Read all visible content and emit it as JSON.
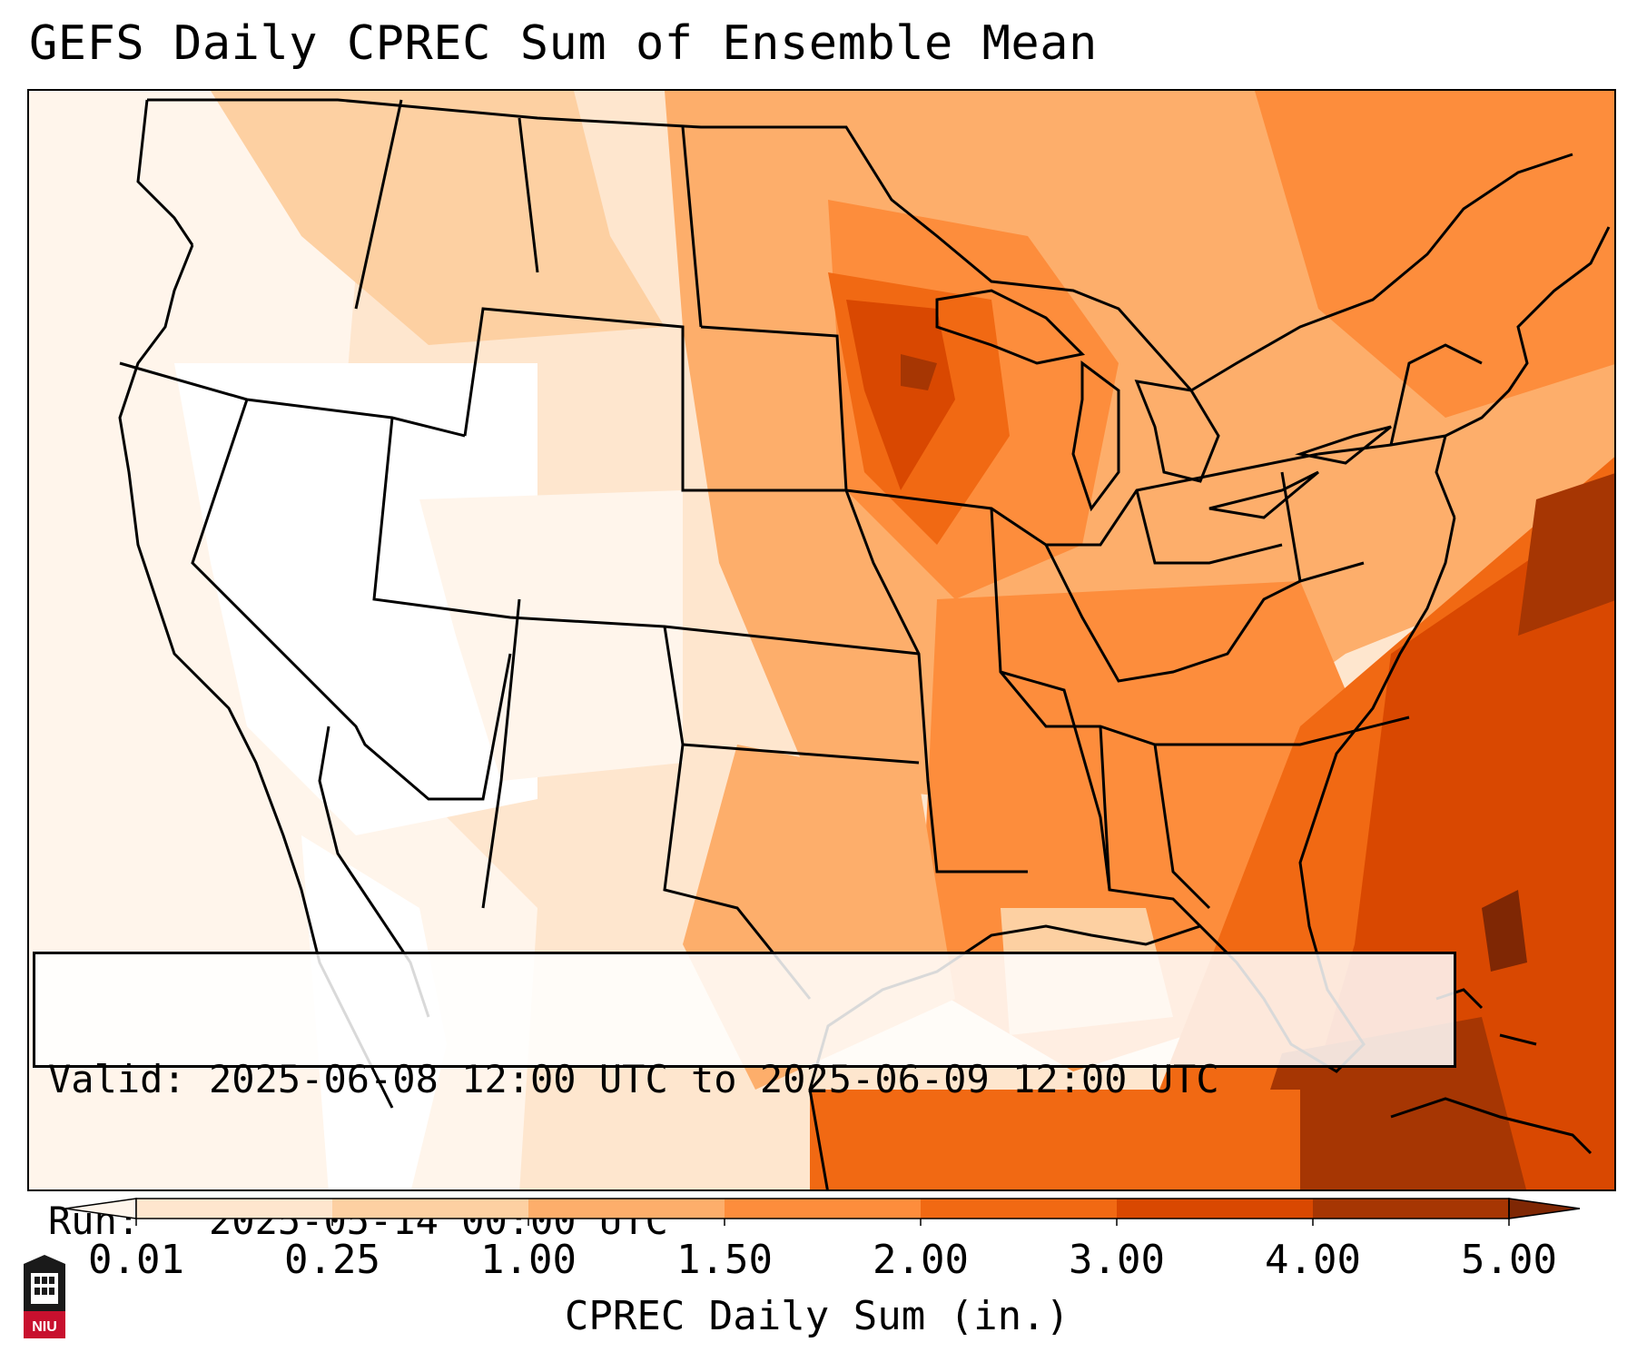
{
  "title": "GEFS Daily CPREC Sum of Ensemble Mean",
  "info": {
    "valid_label": "Valid:",
    "valid_value": "2025-06-08 12:00 UTC to 2025-06-09 12:00 UTC",
    "run_label": "Run:",
    "run_value": "2025-05-14 00:00 UTC"
  },
  "colorbar": {
    "label": "CPREC Daily Sum (in.)",
    "ticks": [
      "0.01",
      "0.25",
      "1.00",
      "1.50",
      "2.00",
      "3.00",
      "4.00",
      "5.00"
    ],
    "colors": [
      "#fff5eb",
      "#fee6ce",
      "#fdd0a2",
      "#fdae6b",
      "#fd8d3c",
      "#f16913",
      "#d94801",
      "#a63603",
      "#7f2704"
    ],
    "extend": "both"
  },
  "logo": {
    "text": "NIU",
    "icon": "niu-tower-icon"
  },
  "map": {
    "projection": "lambert-conformal",
    "region": "CONUS"
  }
}
